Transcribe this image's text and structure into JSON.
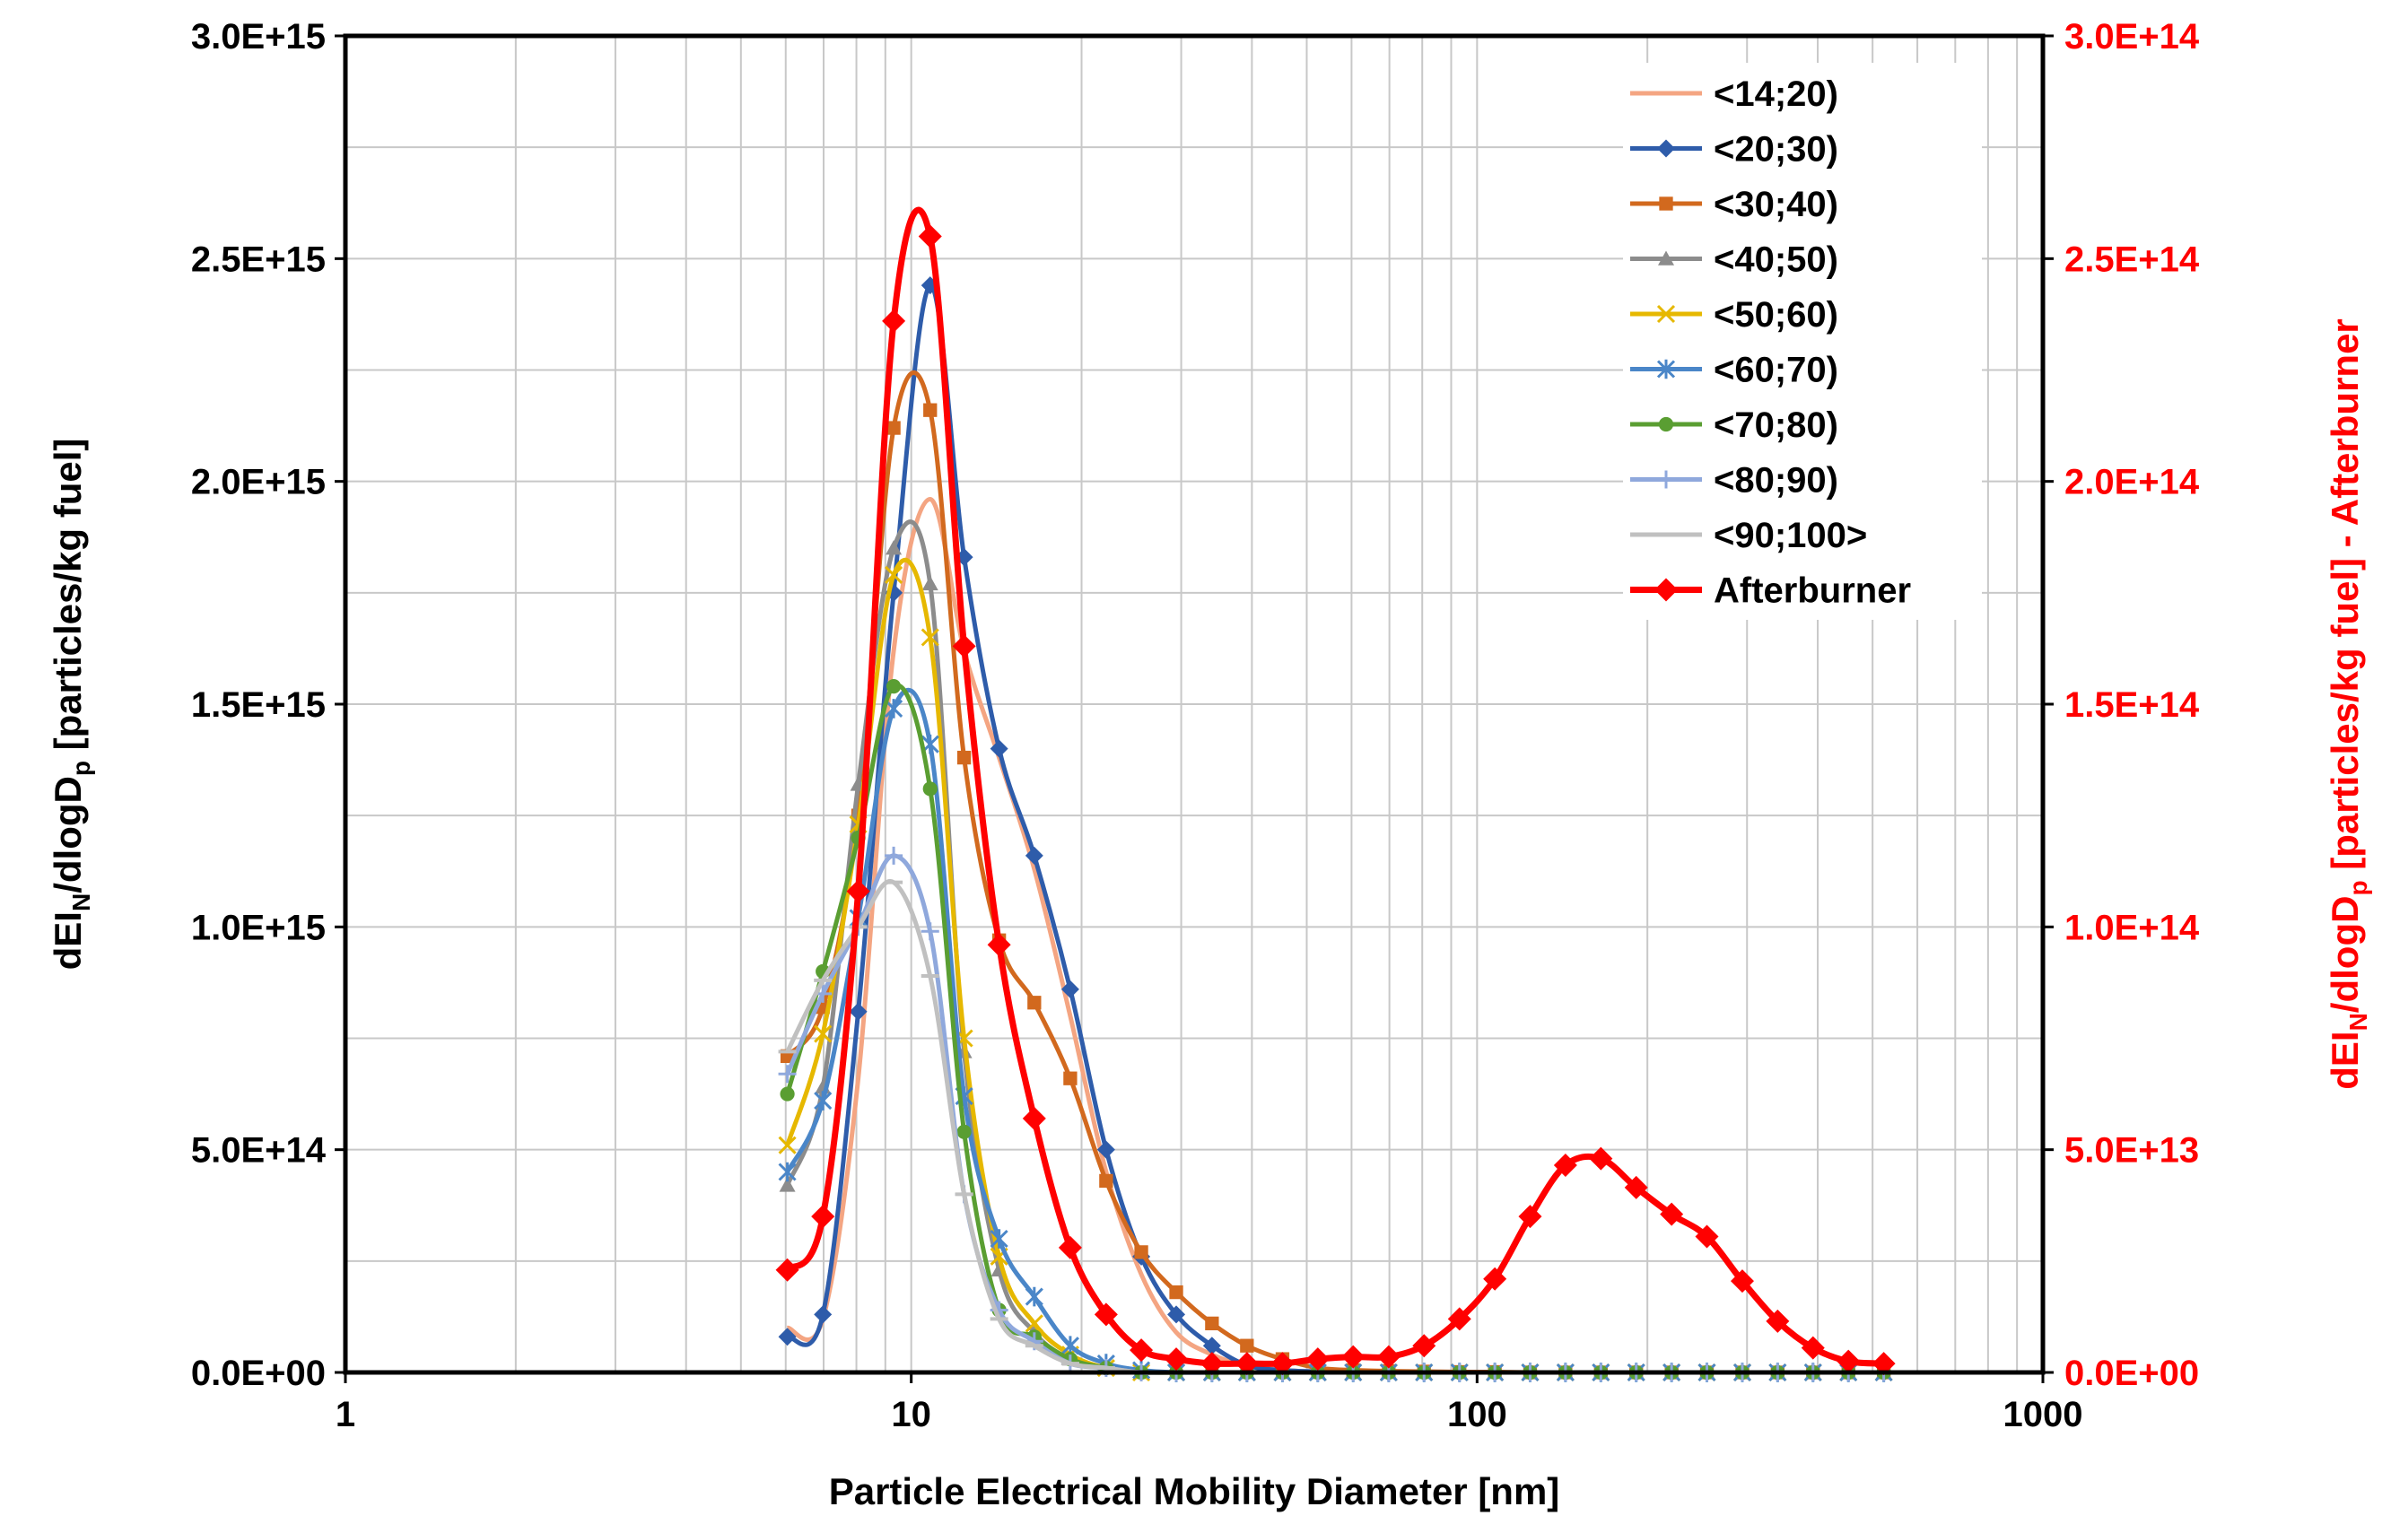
{
  "chart_data": {
    "type": "line",
    "title": "",
    "xlabel": "Particle Electrical Mobility Diameter [nm]",
    "ylabel": "dEI_N/dlogD_p [particles/kg fuel]",
    "ylabel_parts": {
      "pre": "dEI",
      "sub1": "N",
      "mid": "/dlogD",
      "sub2": "p",
      "post": " [particles/kg fuel]"
    },
    "y2label": "dEI_N/dlogD_p [particles/kg fuel] - Afterburner",
    "y2label_parts": {
      "pre": "dEI",
      "sub1": "N",
      "mid": "/dlogD",
      "sub2": "p",
      "post": " [particles/kg fuel] - Afterburner"
    },
    "xscale": "log",
    "xlim": [
      1,
      1000
    ],
    "ylim": [
      0,
      3000000000000000.0
    ],
    "y2lim": [
      0,
      300000000000000.0
    ],
    "grid": true,
    "legend_position": "top-right",
    "x_ticks": [
      1,
      10,
      100,
      1000
    ],
    "x_tick_labels": [
      "1",
      "10",
      "100",
      "1000"
    ],
    "y_ticks": [
      0,
      500000000000000.0,
      1000000000000000.0,
      1500000000000000.0,
      2000000000000000.0,
      2500000000000000.0,
      3000000000000000.0
    ],
    "y_tick_labels": [
      "0.0E+00",
      "5.0E+14",
      "1.0E+15",
      "1.5E+15",
      "2.0E+15",
      "2.5E+15",
      "3.0E+15"
    ],
    "y2_ticks": [
      0,
      50000000000000.0,
      100000000000000.0,
      150000000000000.0,
      200000000000000.0,
      250000000000000.0,
      300000000000000.0
    ],
    "y2_tick_labels": [
      "0.0E+00",
      "5.0E+13",
      "1.0E+14",
      "1.5E+14",
      "2.0E+14",
      "2.5E+14",
      "3.0E+14"
    ],
    "x": [
      6.04,
      6.98,
      8.06,
      9.31,
      10.8,
      12.4,
      14.3,
      16.5,
      19.1,
      22.1,
      25.5,
      29.4,
      34.0,
      39.2,
      45.3,
      52.3,
      60.4,
      69.8,
      80.6,
      93.1,
      107.5,
      124.1,
      143.3,
      165.5,
      191.1,
      220.7,
      254.8,
      294.3,
      339.8,
      392.4,
      453.2,
      523.3
    ],
    "series": [
      {
        "name": "<14;20)",
        "color": "#f4a582",
        "marker": "none",
        "axis": "left",
        "values": [
          100000000000000.0,
          120000000000000.0,
          660000000000000.0,
          1620000000000000.0,
          1960000000000000.0,
          1620000000000000.0,
          1380000000000000.0,
          1130000000000000.0,
          800000000000000.0,
          450000000000000.0,
          220000000000000.0,
          90000000000000.0,
          40000000000000.0,
          15000000000000.0,
          5000000000000.0,
          2000000000000.0,
          1000000000000.0,
          0,
          0,
          0,
          0,
          0,
          0,
          0,
          0,
          0,
          0,
          0,
          0,
          0,
          0,
          0
        ]
      },
      {
        "name": "<20;30)",
        "color": "#2e5caa",
        "marker": "diamond",
        "axis": "left",
        "values": [
          80000000000000.0,
          130000000000000.0,
          810000000000000.0,
          1750000000000000.0,
          2440000000000000.0,
          1830000000000000.0,
          1400000000000000.0,
          1160000000000000.0,
          860000000000000.0,
          500000000000000.0,
          260000000000000.0,
          130000000000000.0,
          60000000000000.0,
          16000000000000.0,
          5000000000000.0,
          2000000000000.0,
          1000000000000.0,
          0,
          0,
          0,
          0,
          0,
          0,
          0,
          0,
          0,
          0,
          0,
          0,
          0,
          0,
          0
        ]
      },
      {
        "name": "<30;40)",
        "color": "#d2691e",
        "marker": "square",
        "axis": "left",
        "values": [
          710000000000000.0,
          820000000000000.0,
          1250000000000000.0,
          2120000000000000.0,
          2160000000000000.0,
          1380000000000000.0,
          970000000000000.0,
          830000000000000.0,
          660000000000000.0,
          430000000000000.0,
          270000000000000.0,
          180000000000000.0,
          110000000000000.0,
          60000000000000.0,
          30000000000000.0,
          10000000000000.0,
          5000000000000.0,
          3000000000000.0,
          2000000000000.0,
          1000000000000.0,
          1000000000000.0,
          0,
          0,
          0,
          0,
          0,
          0,
          0,
          0,
          0,
          0,
          0
        ]
      },
      {
        "name": "<40;50)",
        "color": "#8c8c8c",
        "marker": "triangle",
        "axis": "left",
        "values": [
          420000000000000.0,
          640000000000000.0,
          1320000000000000.0,
          1850000000000000.0,
          1770000000000000.0,
          720000000000000.0,
          230000000000000.0,
          90000000000000.0,
          30000000000000.0,
          10000000000000.0,
          0,
          0,
          0,
          0,
          0,
          0,
          0,
          0,
          0,
          0,
          0,
          0,
          0,
          0,
          0,
          0,
          0,
          0,
          0,
          0,
          0,
          0
        ]
      },
      {
        "name": "<50;60)",
        "color": "#e6b800",
        "marker": "x",
        "axis": "left",
        "values": [
          510000000000000.0,
          760000000000000.0,
          1230000000000000.0,
          1790000000000000.0,
          1650000000000000.0,
          750000000000000.0,
          260000000000000.0,
          110000000000000.0,
          40000000000000.0,
          10000000000000.0,
          0,
          0,
          0,
          0,
          0,
          0,
          0,
          0,
          0,
          0,
          0,
          0,
          0,
          0,
          0,
          0,
          0,
          0,
          0,
          0,
          0,
          0
        ]
      },
      {
        "name": "<60;70)",
        "color": "#4a86c8",
        "marker": "star",
        "axis": "left",
        "values": [
          450000000000000.0,
          610000000000000.0,
          1020000000000000.0,
          1490000000000000.0,
          1410000000000000.0,
          620000000000000.0,
          300000000000000.0,
          170000000000000.0,
          60000000000000.0,
          20000000000000.0,
          5000000000000.0,
          0,
          0,
          0,
          0,
          0,
          0,
          0,
          0,
          0,
          0,
          0,
          0,
          0,
          0,
          0,
          0,
          0,
          0,
          0,
          0,
          0
        ]
      },
      {
        "name": "<70;80)",
        "color": "#5a9e32",
        "marker": "circle",
        "axis": "left",
        "values": [
          625000000000000.0,
          900000000000000.0,
          1200000000000000.0,
          1540000000000000.0,
          1310000000000000.0,
          540000000000000.0,
          140000000000000.0,
          80000000000000.0,
          30000000000000.0,
          10000000000000.0,
          0,
          0,
          0,
          0,
          0,
          0,
          0,
          0,
          0,
          0,
          0,
          0,
          0,
          0,
          0,
          0,
          0,
          0,
          0,
          0,
          0,
          0
        ]
      },
      {
        "name": "<80;90)",
        "color": "#8fa8dc",
        "marker": "plus",
        "axis": "left",
        "values": [
          670000000000000.0,
          850000000000000.0,
          1000000000000000.0,
          1160000000000000.0,
          990000000000000.0,
          400000000000000.0,
          140000000000000.0,
          70000000000000.0,
          20000000000000.0,
          10000000000000.0,
          0,
          0,
          0,
          0,
          0,
          0,
          0,
          0,
          0,
          0,
          0,
          0,
          0,
          0,
          0,
          0,
          0,
          0,
          0,
          0,
          0,
          0
        ]
      },
      {
        "name": "<90;100>",
        "color": "#c0c0c0",
        "marker": "dash",
        "axis": "left",
        "values": [
          720000000000000.0,
          880000000000000.0,
          1000000000000000.0,
          1100000000000000.0,
          890000000000000.0,
          400000000000000.0,
          120000000000000.0,
          60000000000000.0,
          20000000000000.0,
          10000000000000.0,
          0,
          0,
          0,
          0,
          0,
          0,
          0,
          0,
          0,
          0,
          0,
          0,
          0,
          0,
          0,
          0,
          0,
          0,
          0,
          0,
          0,
          0
        ]
      },
      {
        "name": "Afterburner",
        "color": "#ff0000",
        "marker": "diamond",
        "axis": "right",
        "values": [
          23000000000000.0,
          35000000000000.0,
          108000000000000.0,
          236000000000000.0,
          255000000000000.0,
          163000000000000.0,
          96000000000000.0,
          57000000000000.0,
          28000000000000.0,
          13000000000000.0,
          5000000000000.0,
          3000000000000.0,
          2000000000000.0,
          2000000000000.0,
          2000000000000.0,
          3000000000000.0,
          3500000000000.0,
          3500000000000.0,
          6000000000000.0,
          12000000000000.0,
          21000000000000.0,
          35000000000000.0,
          46500000000000.0,
          48000000000000.0,
          41500000000000.0,
          35500000000000.0,
          30500000000000.0,
          20500000000000.0,
          11500000000000.0,
          5500000000000.0,
          2500000000000.0,
          2000000000000.0
        ]
      }
    ]
  }
}
